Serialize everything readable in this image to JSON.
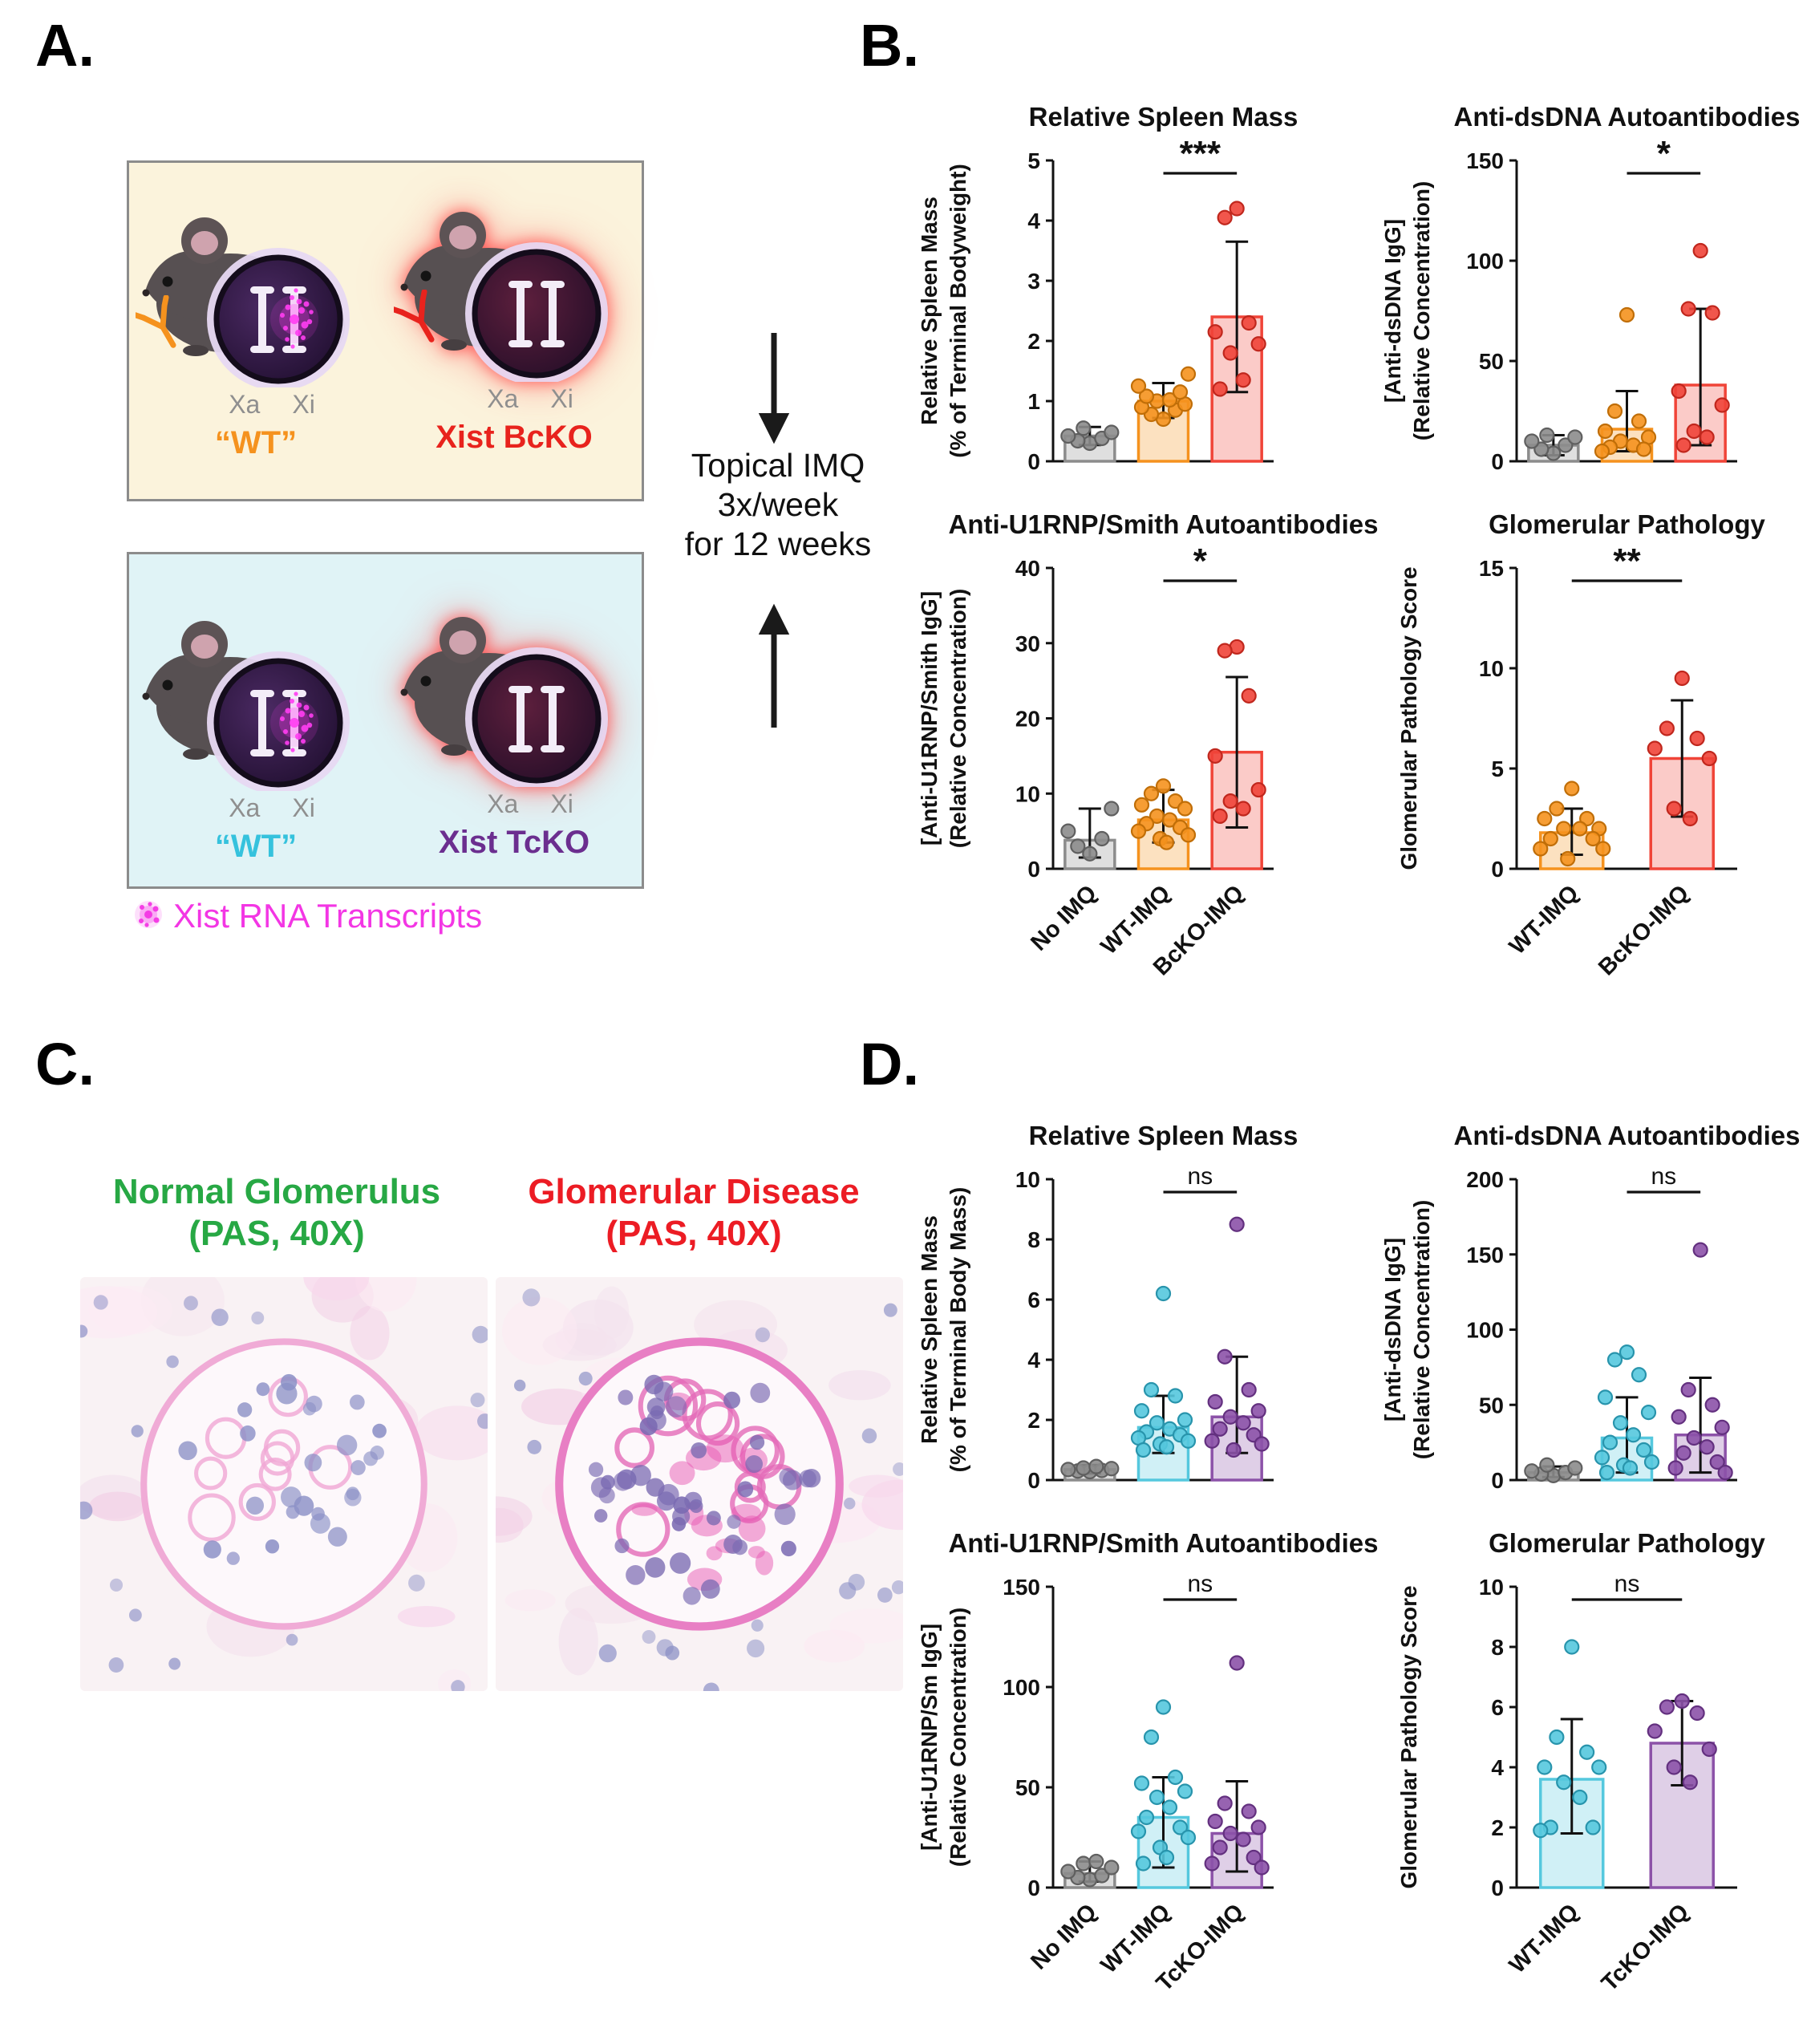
{
  "figure": {
    "panel_a_label": "A.",
    "panel_b_label": "B.",
    "panel_c_label": "C.",
    "panel_d_label": "D."
  },
  "panel_a": {
    "boxes": [
      {
        "bg": "#FBF3DC",
        "mice": [
          {
            "label": "“WT”",
            "label_color": "#F5921E",
            "xa": "Xa",
            "xi": "Xi",
            "xist_cloud": true,
            "glow": false,
            "antibody_color": "#F5921E",
            "nucleus": [
              "#4b2a63",
              "#1f0e2e"
            ]
          },
          {
            "label": "Xist BcKO",
            "label_color": "#E8231D",
            "xa": "Xa",
            "xi": "Xi",
            "xist_cloud": false,
            "glow": true,
            "antibody_color": "#E8231D",
            "nucleus": [
              "#5d1f3d",
              "#230d27"
            ]
          }
        ]
      },
      {
        "bg": "#E0F3F6",
        "mice": [
          {
            "label": "“WT”",
            "label_color": "#35C2DD",
            "xa": "Xa",
            "xi": "Xi",
            "xist_cloud": true,
            "glow": false,
            "antibody_color": null,
            "nucleus": [
              "#4b2a63",
              "#1f0e2e"
            ]
          },
          {
            "label": "Xist TcKO",
            "label_color": "#6B2E8F",
            "xa": "Xa",
            "xi": "Xi",
            "xist_cloud": false,
            "glow": true,
            "antibody_color": null,
            "nucleus": [
              "#5d1f3d",
              "#230d27"
            ]
          }
        ]
      }
    ],
    "treatment_lines": [
      "Topical IMQ",
      "3x/week",
      "for 12 weeks"
    ],
    "legend_label": "Xist RNA Transcripts",
    "legend_color": "#F336E4"
  },
  "panel_c": {
    "images": [
      {
        "title_lines": [
          "Normal Glomerulus",
          "(PAS, 40X)"
        ],
        "title_color": "#27A844",
        "diseased": false
      },
      {
        "title_lines": [
          "Glomerular Disease",
          "(PAS, 40X)"
        ],
        "title_color": "#EC1C24",
        "diseased": true
      }
    ]
  },
  "chart_data": [
    {
      "panel": "B",
      "type": "bar",
      "title": "Relative Spleen Mass",
      "ylabel": [
        "Relative Spleen Mass",
        "(% of Terminal Bodyweight)"
      ],
      "ylim": [
        0,
        5
      ],
      "yticks": [
        0,
        1,
        2,
        3,
        4,
        5
      ],
      "categories": [
        "No IMQ",
        "WT-IMQ",
        "BcKO-IMQ"
      ],
      "show_x_labels": false,
      "significance": {
        "groups": [
          1,
          2
        ],
        "label": "***"
      },
      "series": [
        {
          "name": "No IMQ",
          "color": "#8C8C8C",
          "edge": "#5F5F5F",
          "mean": 0.42,
          "sd_range": [
            0.27,
            0.57
          ],
          "points": [
            0.3,
            0.34,
            0.38,
            0.42,
            0.48,
            0.55
          ]
        },
        {
          "name": "WT-IMQ",
          "color": "#F5921E",
          "edge": "#C06E08",
          "mean": 1.0,
          "sd_range": [
            0.72,
            1.3
          ],
          "points": [
            0.7,
            0.78,
            0.85,
            0.9,
            0.95,
            1.0,
            1.02,
            1.08,
            1.15,
            1.25,
            1.45
          ]
        },
        {
          "name": "BcKO-IMQ",
          "color": "#F04438",
          "edge": "#C0271D",
          "mean": 2.4,
          "sd_range": [
            1.15,
            3.65
          ],
          "points": [
            4.2,
            4.05,
            2.3,
            2.15,
            1.95,
            1.8,
            1.35,
            1.2
          ]
        }
      ]
    },
    {
      "panel": "B",
      "type": "bar",
      "title": "Anti-dsDNA Autoantibodies",
      "ylabel": [
        "[Anti-dsDNA IgG]",
        "(Relative Concentration)"
      ],
      "ylim": [
        0,
        150
      ],
      "yticks": [
        0,
        50,
        100,
        150
      ],
      "categories": [
        "No IMQ",
        "WT-IMQ",
        "BcKO-IMQ"
      ],
      "show_x_labels": false,
      "significance": {
        "groups": [
          1,
          2
        ],
        "label": "*"
      },
      "series": [
        {
          "name": "No IMQ",
          "color": "#8C8C8C",
          "edge": "#5F5F5F",
          "mean": 8,
          "sd_range": [
            3,
            13
          ],
          "points": [
            4,
            6,
            8,
            10,
            12,
            13
          ]
        },
        {
          "name": "WT-IMQ",
          "color": "#F5921E",
          "edge": "#C06E08",
          "mean": 16,
          "sd_range": [
            5,
            35
          ],
          "points": [
            73,
            25,
            20,
            15,
            12,
            10,
            8,
            7,
            6,
            5
          ]
        },
        {
          "name": "BcKO-IMQ",
          "color": "#F04438",
          "edge": "#C0271D",
          "mean": 38,
          "sd_range": [
            8,
            76
          ],
          "points": [
            105,
            76,
            74,
            35,
            28,
            15,
            12,
            8
          ]
        }
      ]
    },
    {
      "panel": "B",
      "type": "bar",
      "title": "Anti-U1RNP/Smith Autoantibodies",
      "ylabel": [
        "[Anti-U1RNP/Smith IgG]",
        "(Relative Concentration)"
      ],
      "ylim": [
        0,
        40
      ],
      "yticks": [
        0,
        10,
        20,
        30,
        40
      ],
      "categories": [
        "No IMQ",
        "WT-IMQ",
        "BcKO-IMQ"
      ],
      "show_x_labels": true,
      "significance": {
        "groups": [
          1,
          2
        ],
        "label": "*"
      },
      "series": [
        {
          "name": "No IMQ",
          "color": "#8C8C8C",
          "edge": "#5F5F5F",
          "mean": 3.8,
          "sd_range": [
            1.5,
            8
          ],
          "points": [
            2,
            3,
            4,
            5,
            8
          ]
        },
        {
          "name": "WT-IMQ",
          "color": "#F5921E",
          "edge": "#C06E08",
          "mean": 6.5,
          "sd_range": [
            3.5,
            10.5
          ],
          "points": [
            11,
            10,
            9,
            8.5,
            8,
            7,
            6.5,
            6,
            5.5,
            5,
            4.5,
            4,
            3.5
          ]
        },
        {
          "name": "BcKO-IMQ",
          "color": "#F04438",
          "edge": "#C0271D",
          "mean": 15.5,
          "sd_range": [
            5.5,
            25.5
          ],
          "points": [
            29.5,
            29,
            23,
            15,
            10.5,
            9,
            8,
            7
          ]
        }
      ]
    },
    {
      "panel": "B",
      "type": "bar",
      "title": "Glomerular Pathology",
      "ylabel": [
        "Glomerular Pathology Score"
      ],
      "ylim": [
        0,
        15
      ],
      "yticks": [
        0,
        5,
        10,
        15
      ],
      "categories": [
        "WT-IMQ",
        "BcKO-IMQ"
      ],
      "show_x_labels": true,
      "significance": {
        "groups": [
          0,
          1
        ],
        "label": "**"
      },
      "series": [
        {
          "name": "WT-IMQ",
          "color": "#F5921E",
          "edge": "#C06E08",
          "mean": 1.8,
          "sd_range": [
            0.7,
            3.0
          ],
          "points": [
            4,
            3,
            2.5,
            2.5,
            2,
            2,
            2,
            1.5,
            1.5,
            1,
            1,
            0.5
          ]
        },
        {
          "name": "BcKO-IMQ",
          "color": "#F04438",
          "edge": "#C0271D",
          "mean": 5.5,
          "sd_range": [
            2.6,
            8.4
          ],
          "points": [
            9.5,
            7,
            6.5,
            6,
            5.5,
            3,
            2.5
          ]
        }
      ]
    },
    {
      "panel": "D",
      "type": "bar",
      "title": "Relative Spleen Mass",
      "ylabel": [
        "Relative Spleen Mass",
        "(% of Terminal Body Mass)"
      ],
      "ylim": [
        0,
        10
      ],
      "yticks": [
        0,
        2,
        4,
        6,
        8,
        10
      ],
      "categories": [
        "No IMQ",
        "WT-IMQ",
        "TcKO-IMQ"
      ],
      "show_x_labels": false,
      "significance": {
        "groups": [
          1,
          2
        ],
        "label": "ns"
      },
      "series": [
        {
          "name": "No IMQ",
          "color": "#8C8C8C",
          "edge": "#5F5F5F",
          "mean": 0.35,
          "sd_range": [
            0.22,
            0.5
          ],
          "points": [
            0.28,
            0.3,
            0.32,
            0.35,
            0.38,
            0.4,
            0.45
          ]
        },
        {
          "name": "WT-IMQ",
          "color": "#55C8DE",
          "edge": "#2894AC",
          "mean": 1.75,
          "sd_range": [
            0.9,
            2.8
          ],
          "points": [
            6.2,
            3.0,
            2.8,
            2.3,
            2.0,
            1.9,
            1.7,
            1.6,
            1.5,
            1.4,
            1.3,
            1.2,
            1.1,
            1.0
          ]
        },
        {
          "name": "TcKO-IMQ",
          "color": "#8C52A8",
          "edge": "#63307F",
          "mean": 2.1,
          "sd_range": [
            0.9,
            4.1
          ],
          "points": [
            8.5,
            4.1,
            3.0,
            2.6,
            2.3,
            2.1,
            1.9,
            1.7,
            1.5,
            1.3,
            1.2,
            1.0
          ]
        }
      ]
    },
    {
      "panel": "D",
      "type": "bar",
      "title": "Anti-dsDNA Autoantibodies",
      "ylabel": [
        "[Anti-dsDNA IgG]",
        "(Relative Concentration)"
      ],
      "ylim": [
        0,
        200
      ],
      "yticks": [
        0,
        50,
        100,
        150,
        200
      ],
      "categories": [
        "No IMQ",
        "WT-IMQ",
        "TcKO-IMQ"
      ],
      "show_x_labels": false,
      "significance": {
        "groups": [
          1,
          2
        ],
        "label": "ns"
      },
      "series": [
        {
          "name": "No IMQ",
          "color": "#8C8C8C",
          "edge": "#5F5F5F",
          "mean": 5,
          "sd_range": [
            2,
            9
          ],
          "points": [
            3,
            4,
            5,
            6,
            8,
            10
          ]
        },
        {
          "name": "WT-IMQ",
          "color": "#55C8DE",
          "edge": "#2894AC",
          "mean": 28,
          "sd_range": [
            5,
            55
          ],
          "points": [
            85,
            80,
            70,
            55,
            45,
            38,
            30,
            25,
            20,
            15,
            12,
            10,
            8,
            5
          ]
        },
        {
          "name": "TcKO-IMQ",
          "color": "#8C52A8",
          "edge": "#63307F",
          "mean": 30,
          "sd_range": [
            5,
            68
          ],
          "points": [
            153,
            60,
            50,
            42,
            35,
            28,
            22,
            18,
            12,
            8,
            5
          ]
        }
      ]
    },
    {
      "panel": "D",
      "type": "bar",
      "title": "Anti-U1RNP/Smith Autoantibodies",
      "ylabel": [
        "[Anti-U1RNP/Sm IgG]",
        "(Relative Concentration)"
      ],
      "ylim": [
        0,
        150
      ],
      "yticks": [
        0,
        50,
        100,
        150
      ],
      "categories": [
        "No IMQ",
        "WT-IMQ",
        "TcKO-IMQ"
      ],
      "show_x_labels": true,
      "significance": {
        "groups": [
          1,
          2
        ],
        "label": "ns"
      },
      "series": [
        {
          "name": "No IMQ",
          "color": "#8C8C8C",
          "edge": "#5F5F5F",
          "mean": 7,
          "sd_range": [
            3,
            13
          ],
          "points": [
            4,
            5,
            6,
            8,
            10,
            12,
            13
          ]
        },
        {
          "name": "WT-IMQ",
          "color": "#55C8DE",
          "edge": "#2894AC",
          "mean": 35,
          "sd_range": [
            10,
            55
          ],
          "points": [
            90,
            75,
            55,
            52,
            48,
            45,
            40,
            35,
            30,
            28,
            25,
            20,
            15,
            12
          ]
        },
        {
          "name": "TcKO-IMQ",
          "color": "#8C52A8",
          "edge": "#63307F",
          "mean": 27,
          "sd_range": [
            8,
            53
          ],
          "points": [
            112,
            42,
            38,
            33,
            30,
            27,
            24,
            20,
            15,
            12,
            10
          ]
        }
      ]
    },
    {
      "panel": "D",
      "type": "bar",
      "title": "Glomerular Pathology",
      "ylabel": [
        "Glomerular Pathology Score"
      ],
      "ylim": [
        0,
        10
      ],
      "yticks": [
        0,
        2,
        4,
        6,
        8,
        10
      ],
      "categories": [
        "WT-IMQ",
        "TcKO-IMQ"
      ],
      "show_x_labels": true,
      "significance": {
        "groups": [
          0,
          1
        ],
        "label": "ns"
      },
      "series": [
        {
          "name": "WT-IMQ",
          "color": "#55C8DE",
          "edge": "#2894AC",
          "mean": 3.6,
          "sd_range": [
            1.8,
            5.6
          ],
          "points": [
            8,
            5,
            4.5,
            4,
            4,
            3.5,
            3,
            2,
            2,
            1.9
          ]
        },
        {
          "name": "TcKO-IMQ",
          "color": "#8C52A8",
          "edge": "#63307F",
          "mean": 4.8,
          "sd_range": [
            3.4,
            6.2
          ],
          "points": [
            6.2,
            6,
            5.8,
            5.2,
            4.6,
            4,
            3.5
          ]
        }
      ]
    }
  ]
}
